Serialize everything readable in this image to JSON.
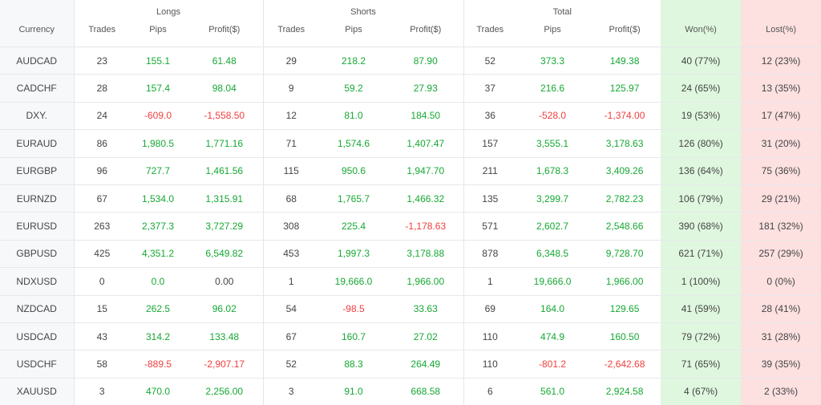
{
  "headers": {
    "group_longs": "Longs",
    "group_shorts": "Shorts",
    "group_total": "Total",
    "currency": "Currency",
    "trades": "Trades",
    "pips": "Pips",
    "profit": "Profit($)",
    "won": "Won(%)",
    "lost": "Lost(%)"
  },
  "colors": {
    "positive": "#16a834",
    "negative": "#ef3e3e",
    "won_bg": "#dff7df",
    "lost_bg": "#fde0e0"
  },
  "rows": [
    {
      "currency": "AUDCAD",
      "l_trades": "23",
      "l_pips": "155.1",
      "l_profit": "61.48",
      "s_trades": "29",
      "s_pips": "218.2",
      "s_profit": "87.90",
      "t_trades": "52",
      "t_pips": "373.3",
      "t_profit": "149.38",
      "won": "40 (77%)",
      "lost": "12 (23%)"
    },
    {
      "currency": "CADCHF",
      "l_trades": "28",
      "l_pips": "157.4",
      "l_profit": "98.04",
      "s_trades": "9",
      "s_pips": "59.2",
      "s_profit": "27.93",
      "t_trades": "37",
      "t_pips": "216.6",
      "t_profit": "125.97",
      "won": "24 (65%)",
      "lost": "13 (35%)"
    },
    {
      "currency": "DXY.",
      "l_trades": "24",
      "l_pips": "-609.0",
      "l_profit": "-1,558.50",
      "s_trades": "12",
      "s_pips": "81.0",
      "s_profit": "184.50",
      "t_trades": "36",
      "t_pips": "-528.0",
      "t_profit": "-1,374.00",
      "won": "19 (53%)",
      "lost": "17 (47%)"
    },
    {
      "currency": "EURAUD",
      "l_trades": "86",
      "l_pips": "1,980.5",
      "l_profit": "1,771.16",
      "s_trades": "71",
      "s_pips": "1,574.6",
      "s_profit": "1,407.47",
      "t_trades": "157",
      "t_pips": "3,555.1",
      "t_profit": "3,178.63",
      "won": "126 (80%)",
      "lost": "31 (20%)"
    },
    {
      "currency": "EURGBP",
      "l_trades": "96",
      "l_pips": "727.7",
      "l_profit": "1,461.56",
      "s_trades": "115",
      "s_pips": "950.6",
      "s_profit": "1,947.70",
      "t_trades": "211",
      "t_pips": "1,678.3",
      "t_profit": "3,409.26",
      "won": "136 (64%)",
      "lost": "75 (36%)"
    },
    {
      "currency": "EURNZD",
      "l_trades": "67",
      "l_pips": "1,534.0",
      "l_profit": "1,315.91",
      "s_trades": "68",
      "s_pips": "1,765.7",
      "s_profit": "1,466.32",
      "t_trades": "135",
      "t_pips": "3,299.7",
      "t_profit": "2,782.23",
      "won": "106 (79%)",
      "lost": "29 (21%)"
    },
    {
      "currency": "EURUSD",
      "l_trades": "263",
      "l_pips": "2,377.3",
      "l_profit": "3,727.29",
      "s_trades": "308",
      "s_pips": "225.4",
      "s_profit": "-1,178.63",
      "t_trades": "571",
      "t_pips": "2,602.7",
      "t_profit": "2,548.66",
      "won": "390 (68%)",
      "lost": "181 (32%)"
    },
    {
      "currency": "GBPUSD",
      "l_trades": "425",
      "l_pips": "4,351.2",
      "l_profit": "6,549.82",
      "s_trades": "453",
      "s_pips": "1,997.3",
      "s_profit": "3,178.88",
      "t_trades": "878",
      "t_pips": "6,348.5",
      "t_profit": "9,728.70",
      "won": "621 (71%)",
      "lost": "257 (29%)"
    },
    {
      "currency": "NDXUSD",
      "l_trades": "0",
      "l_pips": "0.0",
      "l_profit": "0.00",
      "s_trades": "1",
      "s_pips": "19,666.0",
      "s_profit": "1,966.00",
      "t_trades": "1",
      "t_pips": "19,666.0",
      "t_profit": "1,966.00",
      "won": "1 (100%)",
      "lost": "0 (0%)"
    },
    {
      "currency": "NZDCAD",
      "l_trades": "15",
      "l_pips": "262.5",
      "l_profit": "96.02",
      "s_trades": "54",
      "s_pips": "-98.5",
      "s_profit": "33.63",
      "t_trades": "69",
      "t_pips": "164.0",
      "t_profit": "129.65",
      "won": "41 (59%)",
      "lost": "28 (41%)"
    },
    {
      "currency": "USDCAD",
      "l_trades": "43",
      "l_pips": "314.2",
      "l_profit": "133.48",
      "s_trades": "67",
      "s_pips": "160.7",
      "s_profit": "27.02",
      "t_trades": "110",
      "t_pips": "474.9",
      "t_profit": "160.50",
      "won": "79 (72%)",
      "lost": "31 (28%)"
    },
    {
      "currency": "USDCHF",
      "l_trades": "58",
      "l_pips": "-889.5",
      "l_profit": "-2,907.17",
      "s_trades": "52",
      "s_pips": "88.3",
      "s_profit": "264.49",
      "t_trades": "110",
      "t_pips": "-801.2",
      "t_profit": "-2,642.68",
      "won": "71 (65%)",
      "lost": "39 (35%)"
    },
    {
      "currency": "XAUUSD",
      "l_trades": "3",
      "l_pips": "470.0",
      "l_profit": "2,256.00",
      "s_trades": "3",
      "s_pips": "91.0",
      "s_profit": "668.58",
      "t_trades": "6",
      "t_pips": "561.0",
      "t_profit": "2,924.58",
      "won": "4 (67%)",
      "lost": "2 (33%)"
    }
  ]
}
